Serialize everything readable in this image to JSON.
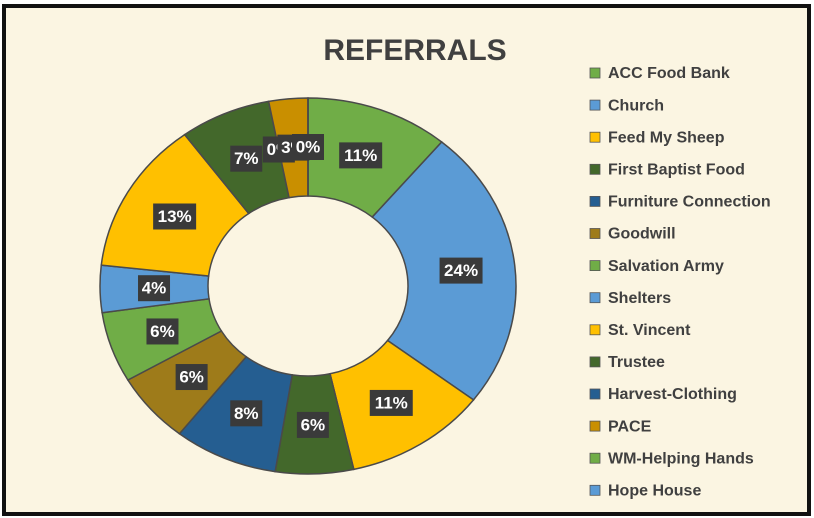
{
  "chart_data": {
    "type": "pie",
    "donut": true,
    "title": "REFERRALS",
    "categories": [
      "ACC Food Bank",
      "Church",
      "Feed My Sheep",
      "First Baptist Food",
      "Furniture Connection",
      "Goodwill",
      "Salvation Army",
      "Shelters",
      "St. Vincent",
      "Trustee",
      "Harvest-Clothing",
      "PACE",
      "WM-Helping Hands",
      "Hope House"
    ],
    "values": [
      11,
      24,
      11,
      6,
      8,
      6,
      6,
      4,
      13,
      7,
      0,
      3,
      0,
      0
    ],
    "value_labels": [
      "11%",
      "24%",
      "11%",
      "6%",
      "8%",
      "6%",
      "6%",
      "4%",
      "13%",
      "7%",
      "0%",
      "3%",
      "0%",
      "0%"
    ],
    "colors": [
      "#70ad47",
      "#5b9bd5",
      "#ffc000",
      "#43682b",
      "#255e91",
      "#9e7b1a",
      "#70ad47",
      "#5b9bd5",
      "#ffc000",
      "#43682b",
      "#255e91",
      "#c98f00",
      "#70ad47",
      "#5b9bd5"
    ],
    "legend": "right"
  }
}
